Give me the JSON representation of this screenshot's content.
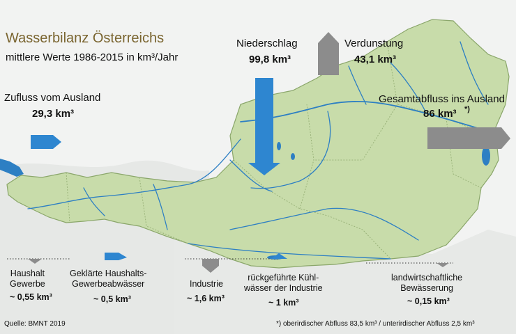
{
  "title": "Wasserbilanz Österreichs",
  "subtitle": "mittlere Werte 1986-2015 in km³/Jahr",
  "flows": {
    "zufluss": {
      "label": "Zufluss vom Ausland",
      "value": "29,3 km³"
    },
    "niederschlag": {
      "label": "Niederschlag",
      "value": "99,8 km³"
    },
    "verdunstung": {
      "label": "Verdunstung",
      "value": "43,1 km³"
    },
    "abfluss": {
      "label": "Gesamtabfluss ins Ausland",
      "value": "86 km³",
      "marker": "*)"
    }
  },
  "uses": {
    "haushalt": {
      "line1": "Haushalt",
      "line2": "Gewerbe",
      "value": "~ 0,55 km³"
    },
    "geklaerte": {
      "line1": "Geklärte Haushalts-",
      "line2": "Gewerbeabwässer",
      "value": "~ 0,5 km³"
    },
    "industrie": {
      "line1": "Industrie",
      "value": "~ 1,6 km³"
    },
    "kuehl": {
      "line1": "rückgeführte Kühl-",
      "line2": "wässer der Industrie",
      "value": "~ 1 km³"
    },
    "landwirt": {
      "line1": "landwirtschaftliche",
      "line2": "Bewässerung",
      "value": "~ 0,15 km³"
    }
  },
  "source": "Quelle: BMNT 2019",
  "footnote": "*) oberirdischer Abfluss 83,5 km³ / unterirdischer Abfluss 2,5 km³",
  "colors": {
    "land": "#c8dcaa",
    "border": "#8aa66a",
    "river": "#2d7fc3",
    "inflow_arrow": "#2e86d0",
    "evaporation_arrow": "#8c8c8c",
    "title": "#7a6530"
  }
}
